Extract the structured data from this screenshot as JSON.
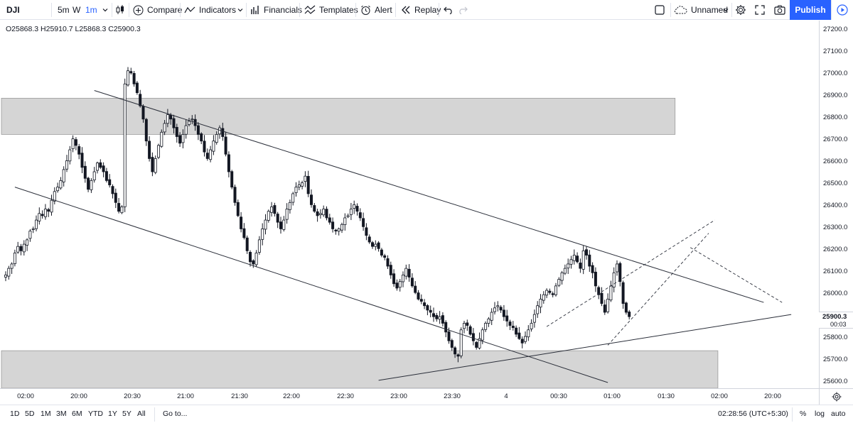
{
  "toolbar": {
    "symbol": "DJI",
    "intervals": [
      "5m",
      "W",
      "1m"
    ],
    "active_interval": "1m",
    "compare": "Compare",
    "indicators": "Indicators",
    "financials": "Financials",
    "templates": "Templates",
    "alert": "Alert",
    "replay": "Replay",
    "layout_name": "Unnamed",
    "publish": "Publish"
  },
  "legend": {
    "ohlc": "O25868.3 H25910.7 L25868.3 C25900.3"
  },
  "price_axis": {
    "labels": [
      "27200.0",
      "27100.0",
      "27000.0",
      "26900.0",
      "26800.0",
      "26700.0",
      "26600.0",
      "26500.0",
      "26400.0",
      "26300.0",
      "26200.0",
      "26100.0",
      "26000.0",
      "25800.0",
      "25700.0",
      "25600.0"
    ],
    "last_price": "25900.3",
    "countdown": "00:03"
  },
  "time_axis": {
    "labels": [
      "02:00",
      "20:00",
      "20:30",
      "21:00",
      "21:30",
      "22:00",
      "22:30",
      "23:00",
      "23:30",
      "4",
      "00:30",
      "01:00",
      "01:30",
      "02:00",
      "20:00"
    ]
  },
  "bottom_bar": {
    "ranges": [
      "1D",
      "5D",
      "1M",
      "3M",
      "6M",
      "YTD",
      "1Y",
      "5Y",
      "All"
    ],
    "goto": "Go to...",
    "clock": "02:28:56 (UTC+5:30)",
    "percent": "%",
    "log": "log",
    "auto": "auto"
  },
  "colors": {
    "accent": "#2962ff",
    "zone_fill": "#d5d5d5",
    "candle": "#131722"
  },
  "chart_data": {
    "type": "candlestick",
    "symbol": "DJI",
    "ylim": [
      25560,
      27250
    ],
    "grid": false,
    "closes": [
      26090,
      26120,
      26140,
      26190,
      26220,
      26200,
      26230,
      26250,
      26290,
      26300,
      26340,
      26370,
      26360,
      26390,
      26380,
      26430,
      26470,
      26490,
      26520,
      26570,
      26610,
      26660,
      26710,
      26680,
      26640,
      26580,
      26530,
      26480,
      26520,
      26560,
      26600,
      26580,
      26560,
      26520,
      26500,
      26460,
      26420,
      26380,
      26400,
      26960,
      27020,
      27010,
      26960,
      26920,
      26860,
      26800,
      26700,
      26620,
      26560,
      26620,
      26680,
      26740,
      26780,
      26820,
      26800,
      26760,
      26720,
      26690,
      26730,
      26770,
      26790,
      26800,
      26770,
      26730,
      26700,
      26650,
      26620,
      26660,
      26700,
      26730,
      26760,
      26720,
      26640,
      26560,
      26490,
      26420,
      26360,
      26300,
      26260,
      26200,
      26150,
      26140,
      26190,
      26250,
      26300,
      26340,
      26380,
      26400,
      26370,
      26330,
      26300,
      26340,
      26390,
      26420,
      26460,
      26490,
      26500,
      26510,
      26540,
      26460,
      26410,
      26380,
      26360,
      26370,
      26390,
      26350,
      26330,
      26300,
      26290,
      26300,
      26320,
      26350,
      26360,
      26390,
      26410,
      26380,
      26350,
      26310,
      26270,
      26240,
      26220,
      26230,
      26210,
      26180,
      26170,
      26130,
      26090,
      26050,
      26030,
      26060,
      26090,
      26120,
      26080,
      26040,
      26010,
      25980,
      25970,
      25950,
      25930,
      25920,
      25900,
      25890,
      25900,
      25870,
      25830,
      25790,
      25760,
      25730,
      25720,
      25840,
      25870,
      25860,
      25820,
      25790,
      25760,
      25800,
      25840,
      25870,
      25890,
      25920,
      25940,
      25950,
      25930,
      25900,
      25880,
      25860,
      25850,
      25820,
      25800,
      25780,
      25810,
      25840,
      25870,
      25910,
      25950,
      25980,
      26000,
      26020,
      26010,
      26000,
      26040,
      26070,
      26100,
      26120,
      26140,
      26160,
      26180,
      26150,
      26120,
      26200,
      26180,
      26130,
      26100,
      26040,
      26000,
      25960,
      25920,
      25980,
      26040,
      26100,
      26140,
      26060,
      25960,
      25920,
      25900
    ],
    "annotations": {
      "zones": [
        {
          "top": 26895,
          "bottom": 26730,
          "x_end_index": 219
        },
        {
          "top": 25745,
          "bottom": 25560,
          "x_end_index": 233
        }
      ],
      "trendlines": [
        {
          "from": [
            3,
            26490
          ],
          "to": [
            197,
            25600
          ],
          "style": "solid"
        },
        {
          "from": [
            29,
            26930
          ],
          "to": [
            248,
            25965
          ],
          "style": "solid"
        },
        {
          "from": [
            122,
            25610
          ],
          "to": [
            257,
            25910
          ],
          "style": "solid"
        },
        {
          "from": [
            177,
            25855
          ],
          "to": [
            232,
            26340
          ],
          "style": "dashed"
        },
        {
          "from": [
            197,
            25770
          ],
          "to": [
            230,
            26280
          ],
          "style": "dashed"
        },
        {
          "from": [
            224,
            26215
          ],
          "to": [
            254,
            25965
          ],
          "style": "dashed"
        }
      ]
    },
    "last_price": 25900.3
  }
}
